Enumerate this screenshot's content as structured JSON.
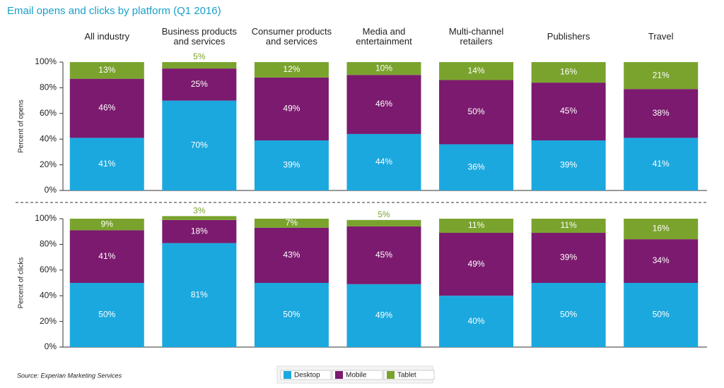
{
  "title": "Email opens and clicks by platform (Q1 2016)",
  "source": "Source: Experian Marketing Services",
  "chart_data": [
    {
      "type": "stacked_bar",
      "ylabel": "Percent of opens",
      "categories": [
        "All industry",
        "Business products\nand services",
        "Consumer products\nand services",
        "Media and\nentertainment",
        "Multi-channel\nretailers",
        "Publishers",
        "Travel"
      ],
      "ylim": [
        0,
        100
      ],
      "yticks": [
        {
          "value": 0,
          "label": "0%"
        },
        {
          "value": 20,
          "label": "20%"
        },
        {
          "value": 40,
          "label": "40%"
        },
        {
          "value": 60,
          "label": "60%"
        },
        {
          "value": 80,
          "label": "80%"
        },
        {
          "value": 100,
          "label": "100%"
        }
      ],
      "series": [
        {
          "color": "#1ba8de",
          "values": [
            41,
            70,
            39,
            44,
            36,
            39,
            41
          ],
          "value_labels": [
            "41%",
            "70%",
            "39%",
            "44%",
            "36%",
            "39%",
            "41%"
          ]
        },
        {
          "color": "#7b1a6e",
          "values": [
            46,
            25,
            49,
            46,
            50,
            45,
            38
          ],
          "value_labels": [
            "46%",
            "25%",
            "49%",
            "46%",
            "50%",
            "45%",
            "38%"
          ]
        },
        {
          "color": "#7aa32e",
          "values": [
            13,
            5,
            12,
            10,
            14,
            16,
            21
          ],
          "value_labels": [
            "13%",
            "5%",
            "12%",
            "10%",
            "14%",
            "16%",
            "21%"
          ]
        }
      ]
    },
    {
      "type": "stacked_bar",
      "ylabel": "Percent of clicks",
      "ylim": [
        0,
        100
      ],
      "yticks": [
        {
          "value": 0,
          "label": "0%"
        },
        {
          "value": 20,
          "label": "20%"
        },
        {
          "value": 40,
          "label": "40%"
        },
        {
          "value": 60,
          "label": "60%"
        },
        {
          "value": 80,
          "label": "80%"
        },
        {
          "value": 100,
          "label": "100%"
        }
      ],
      "series": [
        {
          "name": "Desktop",
          "color": "#1ba8de",
          "values": [
            50,
            81,
            50,
            49,
            40,
            50,
            50
          ],
          "value_labels": [
            "50%",
            "81%",
            "50%",
            "49%",
            "40%",
            "50%",
            "50%"
          ]
        },
        {
          "name": "Mobile",
          "color": "#7b1a6e",
          "values": [
            41,
            18,
            43,
            45,
            49,
            39,
            34
          ],
          "value_labels": [
            "41%",
            "18%",
            "43%",
            "45%",
            "49%",
            "39%",
            "34%"
          ]
        },
        {
          "name": "Tablet",
          "color": "#7aa32e",
          "values": [
            9,
            3,
            7,
            5,
            11,
            11,
            16
          ],
          "value_labels": [
            "9%",
            "3%",
            "7%",
            "5%",
            "11%",
            "11%",
            "16%"
          ]
        }
      ]
    }
  ]
}
